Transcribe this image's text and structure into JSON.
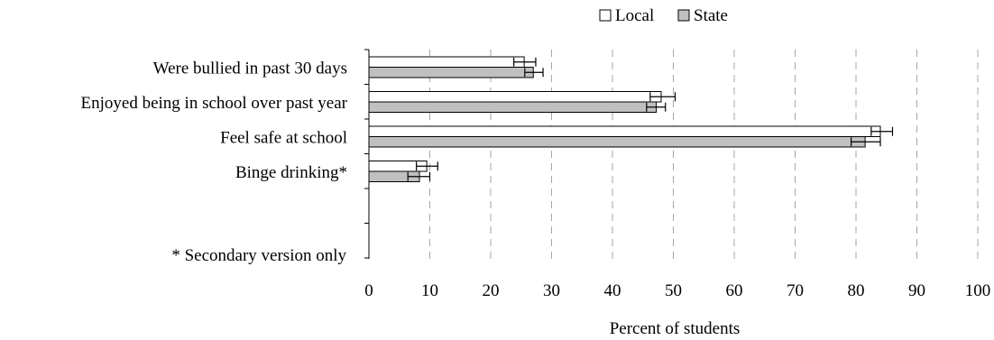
{
  "chart_data": {
    "type": "bar",
    "orientation": "horizontal",
    "title": "",
    "xlabel": "Percent of students",
    "ylabel": "",
    "xlim": [
      0,
      100
    ],
    "xticks": [
      "0",
      "10",
      "20",
      "30",
      "40",
      "50",
      "60",
      "70",
      "80",
      "90",
      "100"
    ],
    "grid": "vertical dashed",
    "legend_position": "top-right",
    "categories": [
      "Were bullied in past 30 days",
      "Enjoyed being in school over past year",
      "Feel safe at school",
      "Binge drinking*"
    ],
    "series": [
      {
        "name": "Local",
        "color": "#ffffff",
        "values": [
          25.5,
          48.0,
          84.0,
          9.5
        ],
        "error_low": [
          23.8,
          46.2,
          82.5,
          7.8
        ],
        "error_high": [
          27.4,
          50.3,
          86.0,
          11.3
        ]
      },
      {
        "name": "State",
        "color": "#c0c0c0",
        "values": [
          27.0,
          47.2,
          81.5,
          8.3
        ],
        "error_low": [
          25.6,
          45.6,
          79.2,
          6.4
        ],
        "error_high": [
          28.6,
          48.7,
          84.0,
          10.0
        ]
      }
    ],
    "footnote": "* Secondary version only"
  }
}
